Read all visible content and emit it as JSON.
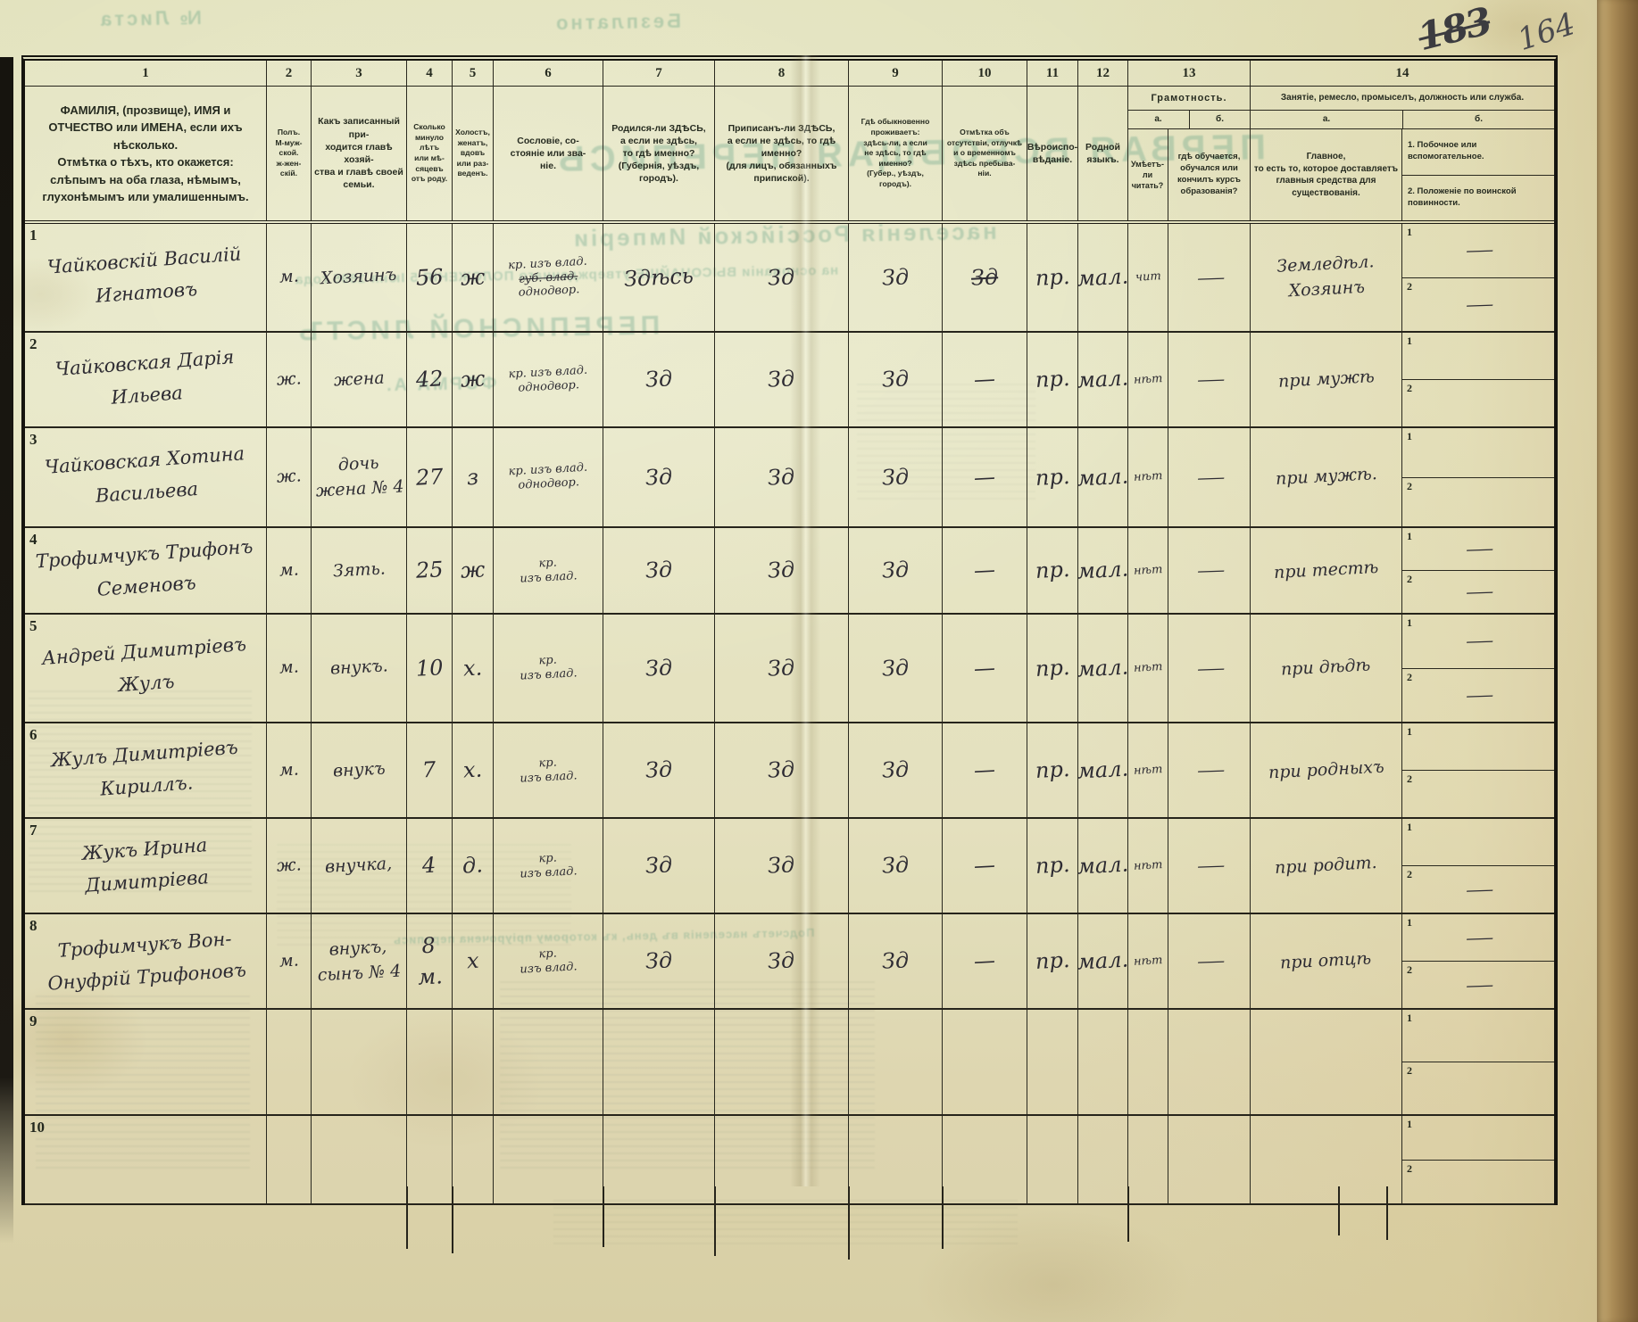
{
  "page": {
    "stamp_old": "183",
    "stamp_new": "164"
  },
  "ghost": {
    "top1": "Безплатно",
    "top2": "№ Листа",
    "title1": "ПЕРВАЯ ВСЕОБЩАЯ ПЕРЕПИСЬ",
    "title2": "населенія Россійской Имперіи",
    "title3": "на основаніи ВЫСОЧАЙШЕ утвержденнаго ПОЛОЖЕНІЯ 5 Іюня 1895 года",
    "title4": "ПЕРЕПИСНОЙ ЛИСТЪ",
    "title5": "ФОРМА А.",
    "mid1": "Подсчетъ населенія въ день, къ которому пріурочена перепись"
  },
  "table": {
    "col_numbers": [
      "1",
      "2",
      "3",
      "4",
      "5",
      "6",
      "7",
      "8",
      "9",
      "10",
      "11",
      "12",
      "13",
      "14"
    ],
    "sub_labels": [
      "1",
      "2"
    ],
    "headers": {
      "c1": "ФАМИЛІЯ, (прозвище), ИМЯ и ОТЧЕСТВО или ИМЕНА, если ихъ нѣсколько.\nОтмѣтка о тѣхъ, кто окажется: слѣпымъ на оба глаза, нѣмымъ, глухонѣмымъ или умалишеннымъ.",
      "c2": "Полъ.\nМ-муж-\nской.\nж-жен-\nскій.",
      "c3": "Какъ записанный при-\nходится главѣ хозяй-\nства и главѣ своей\nсемьи.",
      "c4": "Сколько\nминуло\nлѣтъ\nили мѣ-\nсяцевъ\nотъ роду.",
      "c5": "Холостъ,\nженатъ,\nвдовъ\nили раз-\nведенъ.",
      "c6": "Сословіе, со-\nстояніе или зва-\nніе.",
      "c7": "Родился-ли ЗДѢСЬ,\nа если не здѣсь,\nто гдѣ именно?\n(Губернія, уѣздъ, городъ).",
      "c8": "Приписанъ-ли ЗДѢСЬ,\nа если не здѣсь, то гдѣ\nименно?\n(для лицъ, обязанныхъ\nприпиской).",
      "c9": "Гдѣ обыкновенно\nпроживаетъ:\nздѣсь-ли, а если\nне здѣсь, то гдѣ\nименно?\n(Губер., уѣздъ, городъ).",
      "c10": "Отмѣтка объ\nотсутствіи, отлучкѣ\nи о временномъ\nздѣсь пребыва-\nніи.",
      "c11": "Вѣроиспо-\nвѣданіе.",
      "c12": "Родной\nязыкъ.",
      "c13": {
        "title": "Грамотность.",
        "a_label": "а.",
        "b_label": "б.",
        "a": "Умѣетъ-\nли\nчитать?",
        "b": "гдѣ обучается,\nобучался или\nкончилъ курсъ\nобразованія?"
      },
      "c14": {
        "title": "Занятіе, ремесло, промыселъ, должность или служба.",
        "a_label": "а.",
        "b_label": "б.",
        "a": "Главное,\nто есть то, которое доставляетъ\nглавныя средства для существованія.",
        "b1": "1. Побочное или вспомогательное.",
        "b2": "2. Положеніе по воинской повинности."
      }
    },
    "rows": [
      {
        "num": "1",
        "name": "Чайковскій Василій\nИгнатовъ",
        "sex": "м.",
        "relation": "Хозяинъ",
        "age": "56",
        "marital": "ж",
        "estate_lines": [
          {
            "t": "кр. изъ влад.",
            "s": false
          },
          {
            "t": "губ. влад.",
            "s": true
          },
          {
            "t": "однодвор.",
            "s": false
          }
        ],
        "born": "Здѣсь",
        "registered": "Зд",
        "resides": "Зд",
        "absence": "Зд",
        "absence_struck": true,
        "religion": "пр.",
        "language": "мал.",
        "literacy": "чит",
        "education": "—",
        "occupation": "Земледѣл.\nХозяинъ",
        "side1": "—",
        "side2": "—"
      },
      {
        "num": "2",
        "name": "Чайковская Дарія\nИльева",
        "sex": "ж.",
        "relation": "жена",
        "age": "42",
        "marital": "ж",
        "estate_lines": [
          {
            "t": "кр. изъ влад.",
            "s": false
          },
          {
            "t": "однодвор.",
            "s": false
          }
        ],
        "born": "Зд",
        "registered": "Зд",
        "resides": "Зд",
        "absence": "—",
        "absence_struck": false,
        "religion": "пр.",
        "language": "мал.",
        "literacy": "нѣт",
        "education": "—",
        "occupation": "при мужѣ",
        "side1": "",
        "side2": ""
      },
      {
        "num": "3",
        "name": "Чайковская Хотина\nВасильева",
        "sex": "ж.",
        "relation": "дочь\nжена № 4",
        "age": "27",
        "marital": "з",
        "estate_lines": [
          {
            "t": "кр. изъ влад.",
            "s": false
          },
          {
            "t": "однодвор.",
            "s": false
          }
        ],
        "born": "Зд",
        "registered": "Зд",
        "resides": "Зд",
        "absence": "—",
        "absence_struck": false,
        "religion": "пр.",
        "language": "мал.",
        "literacy": "нѣт",
        "education": "—",
        "occupation": "при мужѣ.",
        "side1": "",
        "side2": ""
      },
      {
        "num": "4",
        "name": "Трофимчукъ Трифонъ\nСеменовъ",
        "sex": "м.",
        "relation": "Зять.",
        "age": "25",
        "marital": "ж",
        "estate_lines": [
          {
            "t": "кр.",
            "s": false
          },
          {
            "t": "изъ влад.",
            "s": false
          }
        ],
        "born": "Зд",
        "registered": "Зд",
        "resides": "Зд",
        "absence": "—",
        "absence_struck": false,
        "religion": "пр.",
        "language": "мал.",
        "literacy": "нѣт",
        "education": "—",
        "occupation": "при тестѣ",
        "side1": "—",
        "side2": "—"
      },
      {
        "num": "5",
        "name": "Андрей Димитріевъ\nЖулъ",
        "sex": "м.",
        "relation": "внукъ.",
        "age": "10",
        "marital": "х.",
        "estate_lines": [
          {
            "t": "кр.",
            "s": false
          },
          {
            "t": "изъ влад.",
            "s": false
          }
        ],
        "born": "Зд",
        "registered": "Зд",
        "resides": "Зд",
        "absence": "—",
        "absence_struck": false,
        "religion": "пр.",
        "language": "мал.",
        "literacy": "нѣт",
        "education": "—",
        "occupation": "при дѣдѣ",
        "side1": "—",
        "side2": "—"
      },
      {
        "num": "6",
        "name": "Жулъ Димитріевъ\nКириллъ.",
        "sex": "м.",
        "relation": "внукъ",
        "age": "7",
        "marital": "х.",
        "estate_lines": [
          {
            "t": "кр.",
            "s": false
          },
          {
            "t": "изъ влад.",
            "s": false
          }
        ],
        "born": "Зд",
        "registered": "Зд",
        "resides": "Зд",
        "absence": "—",
        "absence_struck": false,
        "religion": "пр.",
        "language": "мал.",
        "literacy": "нѣт",
        "education": "—",
        "occupation": "при родныхъ",
        "side1": "",
        "side2": ""
      },
      {
        "num": "7",
        "name": "Жукъ Ирина\nДимитріева",
        "sex": "ж.",
        "relation": "внучка,",
        "age": "4",
        "marital": "д.",
        "estate_lines": [
          {
            "t": "кр.",
            "s": false
          },
          {
            "t": "изъ влад.",
            "s": false
          }
        ],
        "born": "Зд",
        "registered": "Зд",
        "resides": "Зд",
        "absence": "—",
        "absence_struck": false,
        "religion": "пр.",
        "language": "мал.",
        "literacy": "нѣт",
        "education": "—",
        "occupation": "при родит.",
        "side1": "",
        "side2": "—"
      },
      {
        "num": "8",
        "name": "Трофимчукъ Вон-\nОнуфрій Трифоновъ",
        "sex": "м.",
        "relation": "внукъ,\nсынъ № 4",
        "age": "8 м.",
        "marital": "х",
        "estate_lines": [
          {
            "t": "кр.",
            "s": false
          },
          {
            "t": "изъ влад.",
            "s": false
          }
        ],
        "born": "Зд",
        "registered": "Зд",
        "resides": "Зд",
        "absence": "—",
        "absence_struck": false,
        "religion": "пр.",
        "language": "мал.",
        "literacy": "нѣт",
        "education": "—",
        "occupation": "при отцѣ",
        "side1": "—",
        "side2": "—"
      },
      {
        "num": "9",
        "name": "",
        "sex": "",
        "relation": "",
        "age": "",
        "marital": "",
        "estate_lines": [],
        "born": "",
        "registered": "",
        "resides": "",
        "absence": "",
        "absence_struck": false,
        "religion": "",
        "language": "",
        "literacy": "",
        "education": "",
        "occupation": "",
        "side1": "",
        "side2": ""
      },
      {
        "num": "10",
        "name": "",
        "sex": "",
        "relation": "",
        "age": "",
        "marital": "",
        "estate_lines": [],
        "born": "",
        "registered": "",
        "resides": "",
        "absence": "",
        "absence_struck": false,
        "religion": "",
        "language": "",
        "literacy": "",
        "education": "",
        "occupation": "",
        "side1": "",
        "side2": ""
      }
    ]
  }
}
